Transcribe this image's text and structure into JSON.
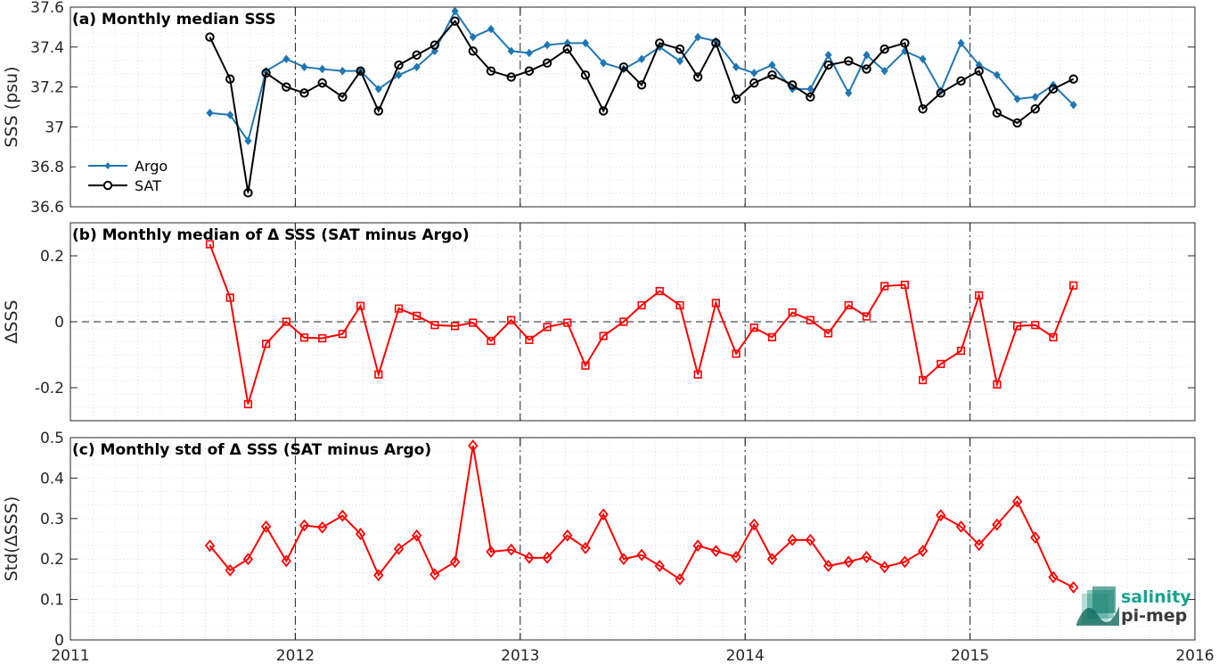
{
  "colors": {
    "argo": "#1f77b4",
    "sat": "#000000",
    "delta": "#ff0000",
    "logo_accent": "#17a38f"
  },
  "x_ticks": [
    "2011",
    "2012",
    "2013",
    "2014",
    "2015",
    "2016"
  ],
  "logo": {
    "line1": "salinity",
    "line2": "pi-mep"
  },
  "chart_data": [
    {
      "type": "line",
      "title": "(a) Monthly median SSS",
      "ylabel": "SSS (psu)",
      "ylim": [
        36.6,
        37.6
      ],
      "yticks": [
        "36.6",
        "36.8",
        "37",
        "37.2",
        "37.4",
        "37.6"
      ],
      "xlim": [
        2011,
        2016
      ],
      "legend": {
        "location": "bottom-left",
        "entries": [
          "Argo",
          "SAT"
        ]
      },
      "x": [
        2011.62,
        2011.71,
        2011.79,
        2011.87,
        2011.96,
        2012.04,
        2012.12,
        2012.21,
        2012.29,
        2012.37,
        2012.46,
        2012.54,
        2012.62,
        2012.71,
        2012.79,
        2012.87,
        2012.96,
        2013.04,
        2013.12,
        2013.21,
        2013.29,
        2013.37,
        2013.46,
        2013.54,
        2013.62,
        2013.71,
        2013.79,
        2013.87,
        2013.96,
        2014.04,
        2014.12,
        2014.21,
        2014.29,
        2014.37,
        2014.46,
        2014.54,
        2014.62,
        2014.71,
        2014.79,
        2014.87,
        2014.96,
        2015.04,
        2015.12,
        2015.21,
        2015.29,
        2015.37,
        2015.46
      ],
      "series": [
        {
          "name": "Argo",
          "marker": "diamond",
          "values": [
            37.07,
            37.06,
            36.93,
            37.28,
            37.34,
            37.3,
            37.29,
            37.28,
            37.28,
            37.19,
            37.26,
            37.3,
            37.38,
            37.58,
            37.45,
            37.49,
            37.38,
            37.37,
            37.41,
            37.42,
            37.42,
            37.32,
            37.29,
            37.34,
            37.4,
            37.33,
            37.45,
            37.43,
            37.3,
            37.27,
            37.31,
            37.19,
            37.19,
            37.36,
            37.17,
            37.36,
            37.28,
            37.38,
            37.34,
            37.18,
            37.42,
            37.31,
            37.26,
            37.14,
            37.15,
            37.21,
            37.11
          ]
        },
        {
          "name": "SAT",
          "marker": "circle",
          "values": [
            37.45,
            37.24,
            36.67,
            37.27,
            37.2,
            37.17,
            37.22,
            37.15,
            37.28,
            37.08,
            37.31,
            37.36,
            37.41,
            37.53,
            37.38,
            37.28,
            37.25,
            37.28,
            37.32,
            37.39,
            37.26,
            37.08,
            37.3,
            37.21,
            37.42,
            37.39,
            37.25,
            37.42,
            37.14,
            37.22,
            37.26,
            37.21,
            37.15,
            37.31,
            37.33,
            37.29,
            37.39,
            37.42,
            37.09,
            37.17,
            37.23,
            37.28,
            37.07,
            37.02,
            37.09,
            37.19,
            37.24
          ]
        }
      ]
    },
    {
      "type": "line",
      "title": "(b) Monthly median of Δ SSS (SAT minus Argo)",
      "ylabel": "ΔSSS",
      "ylim": [
        -0.3,
        0.3
      ],
      "yticks": [
        "-0.2",
        "0",
        "0.2"
      ],
      "ytick_values": [
        -0.2,
        0,
        0.2
      ],
      "xlim": [
        2011,
        2016
      ],
      "zero_line": true,
      "x": [
        2011.62,
        2011.71,
        2011.79,
        2011.87,
        2011.96,
        2012.04,
        2012.12,
        2012.21,
        2012.29,
        2012.37,
        2012.46,
        2012.54,
        2012.62,
        2012.71,
        2012.79,
        2012.87,
        2012.96,
        2013.04,
        2013.12,
        2013.21,
        2013.29,
        2013.37,
        2013.46,
        2013.54,
        2013.62,
        2013.71,
        2013.79,
        2013.87,
        2013.96,
        2014.04,
        2014.12,
        2014.21,
        2014.29,
        2014.37,
        2014.46,
        2014.54,
        2014.62,
        2014.71,
        2014.79,
        2014.87,
        2014.96,
        2015.04,
        2015.12,
        2015.21,
        2015.29,
        2015.37,
        2015.46
      ],
      "series": [
        {
          "marker": "square",
          "values": [
            0.235,
            0.073,
            -0.25,
            -0.067,
            0.0,
            -0.048,
            -0.05,
            -0.037,
            0.048,
            -0.16,
            0.04,
            0.018,
            -0.01,
            -0.013,
            -0.003,
            -0.058,
            0.005,
            -0.055,
            -0.016,
            -0.003,
            -0.133,
            -0.043,
            0.0,
            0.05,
            0.093,
            0.05,
            -0.16,
            0.057,
            -0.097,
            -0.018,
            -0.047,
            0.028,
            0.005,
            -0.035,
            0.05,
            0.016,
            0.108,
            0.112,
            -0.177,
            -0.128,
            -0.088,
            0.08,
            -0.19,
            -0.013,
            -0.01,
            -0.047,
            0.11
          ]
        }
      ]
    },
    {
      "type": "line",
      "title": "(c) Monthly std of Δ SSS (SAT minus Argo)",
      "ylabel": "Std(ΔSSS)",
      "ylim": [
        0,
        0.5
      ],
      "yticks": [
        "0",
        "0.1",
        "0.2",
        "0.3",
        "0.4",
        "0.5"
      ],
      "xlim": [
        2011,
        2016
      ],
      "x": [
        2011.62,
        2011.71,
        2011.79,
        2011.87,
        2011.96,
        2012.04,
        2012.12,
        2012.21,
        2012.29,
        2012.37,
        2012.46,
        2012.54,
        2012.62,
        2012.71,
        2012.79,
        2012.87,
        2012.96,
        2013.04,
        2013.12,
        2013.21,
        2013.29,
        2013.37,
        2013.46,
        2013.54,
        2013.62,
        2013.71,
        2013.79,
        2013.87,
        2013.96,
        2014.04,
        2014.12,
        2014.21,
        2014.29,
        2014.37,
        2014.46,
        2014.54,
        2014.62,
        2014.71,
        2014.79,
        2014.87,
        2014.96,
        2015.04,
        2015.12,
        2015.21,
        2015.29,
        2015.37,
        2015.46
      ],
      "series": [
        {
          "marker": "diamond",
          "values": [
            0.233,
            0.172,
            0.2,
            0.28,
            0.195,
            0.283,
            0.278,
            0.307,
            0.262,
            0.16,
            0.225,
            0.258,
            0.162,
            0.193,
            0.48,
            0.218,
            0.223,
            0.203,
            0.203,
            0.258,
            0.227,
            0.31,
            0.2,
            0.21,
            0.183,
            0.15,
            0.233,
            0.22,
            0.205,
            0.285,
            0.2,
            0.247,
            0.247,
            0.183,
            0.193,
            0.205,
            0.18,
            0.193,
            0.22,
            0.308,
            0.28,
            0.235,
            0.285,
            0.342,
            0.253,
            0.155,
            0.13
          ]
        }
      ]
    }
  ]
}
